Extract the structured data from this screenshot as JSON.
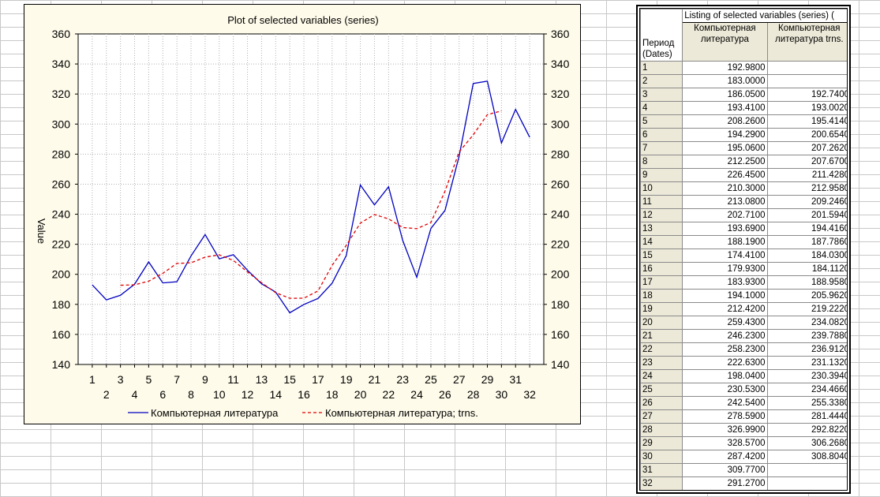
{
  "chart_data": {
    "type": "line",
    "title": "Plot of selected variables (series)",
    "ylabel": "Value",
    "xlabel": "",
    "ylim": [
      140,
      360
    ],
    "yticks": [
      140,
      160,
      180,
      200,
      220,
      240,
      260,
      280,
      300,
      320,
      340,
      360
    ],
    "xlim": [
      0,
      33
    ],
    "x": [
      1,
      2,
      3,
      4,
      5,
      6,
      7,
      8,
      9,
      10,
      11,
      12,
      13,
      14,
      15,
      16,
      17,
      18,
      19,
      20,
      21,
      22,
      23,
      24,
      25,
      26,
      27,
      28,
      29,
      30,
      31,
      32
    ],
    "grid": true,
    "legend_position": "bottom",
    "series": [
      {
        "name": "Компьютерная литература",
        "color": "#0000c0",
        "dash": "solid",
        "values": [
          192.98,
          183.0,
          186.05,
          193.41,
          208.26,
          194.29,
          195.06,
          212.25,
          226.45,
          210.3,
          213.08,
          202.71,
          193.69,
          188.19,
          174.41,
          179.93,
          183.93,
          194.1,
          212.42,
          259.43,
          246.23,
          258.23,
          222.63,
          198.04,
          230.53,
          242.54,
          278.59,
          326.99,
          328.57,
          287.42,
          309.77,
          291.27
        ]
      },
      {
        "name": "Компьютерная литература; trns.",
        "color": "#e00000",
        "dash": "dashed",
        "values": [
          null,
          null,
          192.74,
          193.002,
          195.414,
          200.654,
          207.262,
          207.67,
          211.428,
          212.958,
          209.246,
          201.594,
          194.416,
          187.786,
          184.03,
          184.112,
          188.958,
          205.962,
          219.222,
          234.082,
          239.788,
          236.912,
          231.132,
          230.394,
          234.466,
          255.338,
          281.444,
          292.822,
          306.268,
          308.804,
          null,
          null
        ]
      }
    ]
  },
  "table": {
    "title": "Listing of selected variables (series) (",
    "index_header_line1": "Период",
    "index_header_line2": "(Dates)",
    "col1_header": "Компьютерная литература",
    "col2_header": "Компьютерная литература trns.",
    "rows": [
      [
        "1",
        "192.9800",
        ""
      ],
      [
        "2",
        "183.0000",
        ""
      ],
      [
        "3",
        "186.0500",
        "192.7400"
      ],
      [
        "4",
        "193.4100",
        "193.0020"
      ],
      [
        "5",
        "208.2600",
        "195.4140"
      ],
      [
        "6",
        "194.2900",
        "200.6540"
      ],
      [
        "7",
        "195.0600",
        "207.2620"
      ],
      [
        "8",
        "212.2500",
        "207.6700"
      ],
      [
        "9",
        "226.4500",
        "211.4280"
      ],
      [
        "10",
        "210.3000",
        "212.9580"
      ],
      [
        "11",
        "213.0800",
        "209.2460"
      ],
      [
        "12",
        "202.7100",
        "201.5940"
      ],
      [
        "13",
        "193.6900",
        "194.4160"
      ],
      [
        "14",
        "188.1900",
        "187.7860"
      ],
      [
        "15",
        "174.4100",
        "184.0300"
      ],
      [
        "16",
        "179.9300",
        "184.1120"
      ],
      [
        "17",
        "183.9300",
        "188.9580"
      ],
      [
        "18",
        "194.1000",
        "205.9620"
      ],
      [
        "19",
        "212.4200",
        "219.2220"
      ],
      [
        "20",
        "259.4300",
        "234.0820"
      ],
      [
        "21",
        "246.2300",
        "239.7880"
      ],
      [
        "22",
        "258.2300",
        "236.9120"
      ],
      [
        "23",
        "222.6300",
        "231.1320"
      ],
      [
        "24",
        "198.0400",
        "230.3940"
      ],
      [
        "25",
        "230.5300",
        "234.4660"
      ],
      [
        "26",
        "242.5400",
        "255.3380"
      ],
      [
        "27",
        "278.5900",
        "281.4440"
      ],
      [
        "28",
        "326.9900",
        "292.8220"
      ],
      [
        "29",
        "328.5700",
        "306.2680"
      ],
      [
        "30",
        "287.4200",
        "308.8040"
      ],
      [
        "31",
        "309.7700",
        ""
      ],
      [
        "32",
        "291.2700",
        ""
      ]
    ]
  }
}
